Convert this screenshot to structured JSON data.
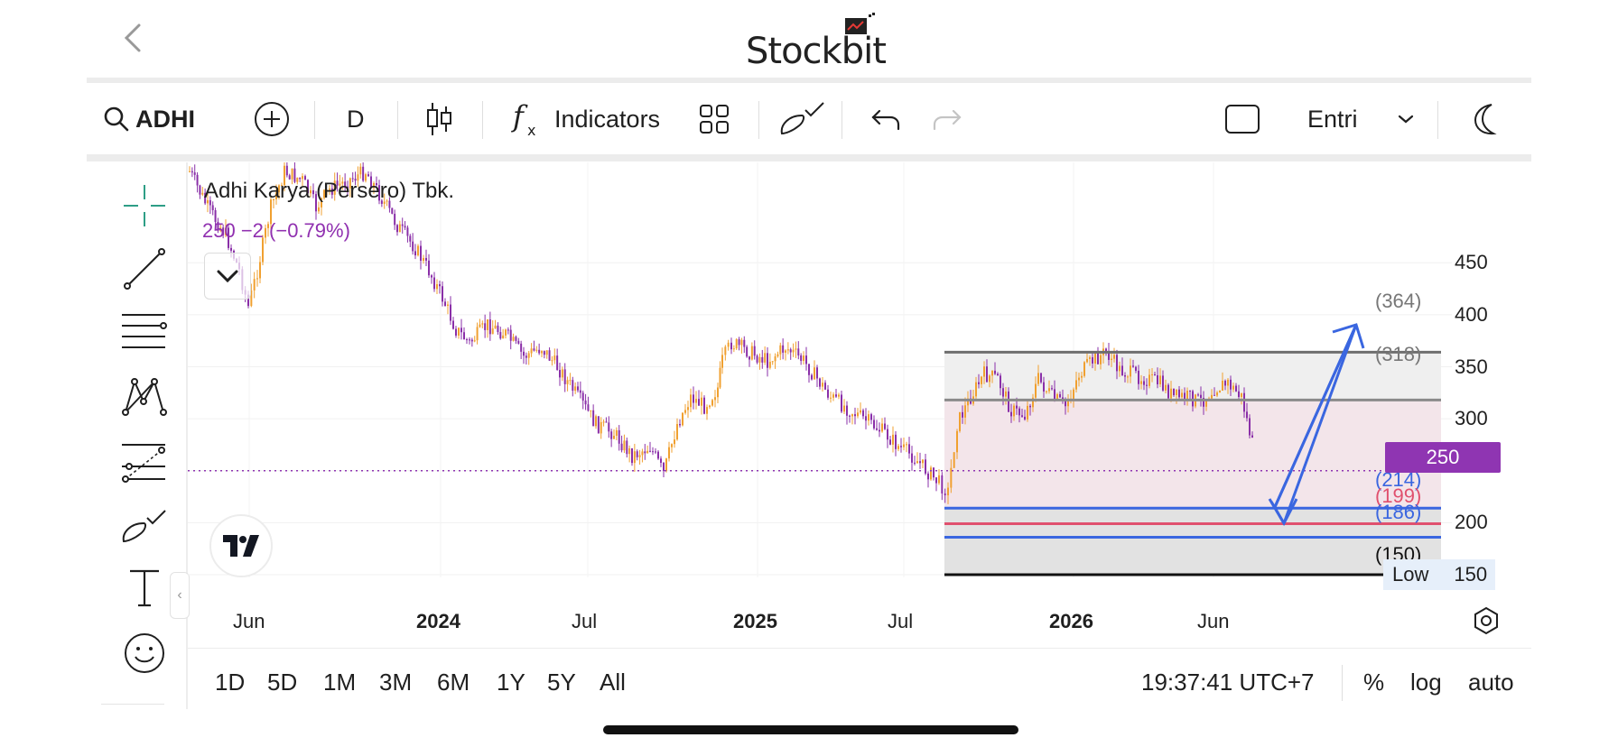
{
  "header": {
    "logo_text": "Stockbit",
    "back_icon": "chevron-left-icon"
  },
  "toolbar": {
    "symbol": "ADHI",
    "interval": "D",
    "indicators_label": "Indicators",
    "order_type": "Entri"
  },
  "chart": {
    "title": "Adhi Karya (Persero) Tbk.",
    "price_change": "250  −2 (−0.79%)",
    "current_price": "250",
    "low_label": "Low",
    "low_value": "150",
    "y_ticks": [
      "450",
      "400",
      "350",
      "300",
      "250",
      "200",
      "150"
    ],
    "x_ticks": [
      {
        "label": "Jun",
        "bold": false
      },
      {
        "label": "2024",
        "bold": true
      },
      {
        "label": "Jul",
        "bold": false
      },
      {
        "label": "2025",
        "bold": true
      },
      {
        "label": "Jul",
        "bold": false
      },
      {
        "label": "2026",
        "bold": true
      },
      {
        "label": "Jun",
        "bold": false
      }
    ],
    "levels": [
      {
        "label": "(364)",
        "value": 364,
        "color": "#777777"
      },
      {
        "label": "(318)",
        "value": 318,
        "color": "#777777"
      },
      {
        "label": "(214)",
        "value": 214,
        "color": "#3a66e0"
      },
      {
        "label": "(199)",
        "value": 199,
        "color": "#e0506e"
      },
      {
        "label": "(186)",
        "value": 186,
        "color": "#3a66e0"
      },
      {
        "label": "(150)",
        "value": 150,
        "color": "#111111"
      }
    ],
    "colors": {
      "up": "#f0a030",
      "down": "#8a2fa8",
      "accent": "#8f35b2",
      "arrow": "#3a66e0"
    }
  },
  "ranges": [
    "1D",
    "5D",
    "1M",
    "3M",
    "6M",
    "1Y",
    "5Y",
    "All"
  ],
  "status": {
    "time": "19:37:41 UTC+7",
    "percent": "%",
    "log": "log",
    "auto": "auto"
  }
}
